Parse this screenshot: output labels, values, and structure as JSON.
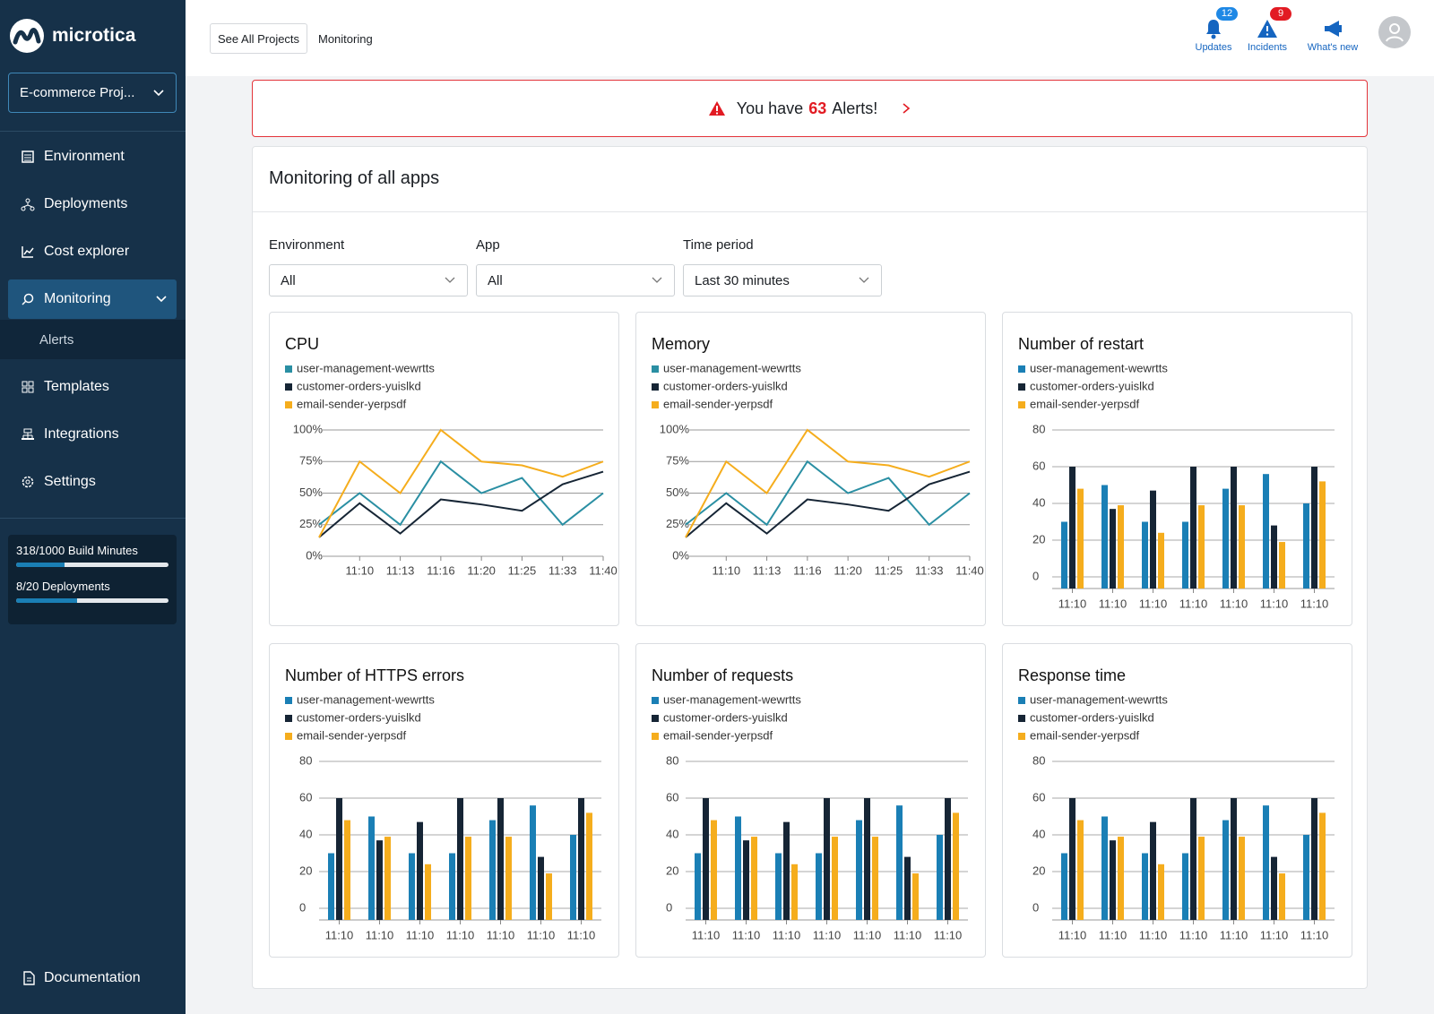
{
  "sidebar": {
    "brand": "microtica",
    "project": "E-commerce Proj...",
    "nav": [
      "Environment",
      "Deployments",
      "Cost explorer",
      "Monitoring",
      "Alerts",
      "Templates",
      "Integrations",
      "Settings"
    ],
    "usage": [
      {
        "label": "318/1000 Build Minutes",
        "used": 318,
        "limit": 1000
      },
      {
        "label": "8/20 Deployments",
        "used": 8,
        "limit": 20
      }
    ],
    "footer": "Documentation"
  },
  "header": {
    "breadcrumbs": [
      "See All Projects",
      "Monitoring"
    ],
    "actions": [
      {
        "label": "Updates",
        "badge": 12
      },
      {
        "label": "Incidents",
        "badge": 9
      },
      {
        "label": "What's new"
      }
    ]
  },
  "alert": {
    "before": "You have",
    "count": 63,
    "after": "Alerts!"
  },
  "panel": {
    "title": "Monitoring of all apps",
    "filters": [
      {
        "label": "Environment",
        "value": "All"
      },
      {
        "label": "App",
        "value": "All"
      },
      {
        "label": "Time period",
        "value": "Last 30 minutes"
      }
    ]
  },
  "chart_data": [
    {
      "type": "line",
      "title": "CPU",
      "categories": [
        null,
        "11:10",
        "11:13",
        "11:16",
        "11:20",
        "11:25",
        "11:33",
        "11:40"
      ],
      "series": [
        {
          "name": "user-management-wewrtts",
          "color": "#2a8fa3",
          "values": [
            25,
            50,
            25,
            75,
            50,
            62,
            25,
            50
          ]
        },
        {
          "name": "customer-orders-yuislkd",
          "color": "#162535",
          "values": [
            15,
            42,
            18,
            45,
            41,
            36,
            57,
            67
          ]
        },
        {
          "name": "email-sender-yerpsdf",
          "color": "#f5ad1d",
          "values": [
            15,
            75,
            50,
            100,
            75,
            72,
            63,
            75
          ]
        }
      ],
      "ylim": [
        0,
        100
      ],
      "yticks": [
        {
          "value": 0,
          "label": "0%"
        },
        {
          "value": 25,
          "label": "25%"
        },
        {
          "value": 50,
          "label": "50%"
        },
        {
          "value": 75,
          "label": "75%"
        },
        {
          "value": 100,
          "label": "100%"
        }
      ],
      "grid": true
    },
    {
      "type": "line",
      "title": "Memory",
      "categories": [
        null,
        "11:10",
        "11:13",
        "11:16",
        "11:20",
        "11:25",
        "11:33",
        "11:40"
      ],
      "series": [
        {
          "name": "user-management-wewrtts",
          "color": "#2a8fa3",
          "values": [
            25,
            50,
            25,
            75,
            50,
            62,
            25,
            50
          ]
        },
        {
          "name": "customer-orders-yuislkd",
          "color": "#162535",
          "values": [
            15,
            42,
            18,
            45,
            41,
            36,
            57,
            67
          ]
        },
        {
          "name": "email-sender-yerpsdf",
          "color": "#f5ad1d",
          "values": [
            15,
            75,
            50,
            100,
            75,
            72,
            63,
            75
          ]
        }
      ],
      "ylim": [
        0,
        100
      ],
      "yticks": [
        {
          "value": 0,
          "label": "0%"
        },
        {
          "value": 25,
          "label": "25%"
        },
        {
          "value": 50,
          "label": "50%"
        },
        {
          "value": 75,
          "label": "75%"
        },
        {
          "value": 100,
          "label": "100%"
        }
      ],
      "grid": true
    },
    {
      "type": "bar",
      "title": "Number of restart",
      "categories": [
        "11:10",
        "11:10",
        "11:10",
        "11:10",
        "11:10",
        "11:10",
        "11:10"
      ],
      "series": [
        {
          "name": "user-management-wewrtts",
          "color": "#1a7fb5",
          "values": [
            30,
            50,
            30,
            30,
            48,
            56,
            40
          ]
        },
        {
          "name": "customer-orders-yuislkd",
          "color": "#162535",
          "values": [
            60,
            37,
            47,
            60,
            60,
            28,
            60
          ]
        },
        {
          "name": "email-sender-yerpsdf",
          "color": "#f5ad1d",
          "values": [
            48,
            39,
            24,
            39,
            39,
            19,
            52
          ]
        }
      ],
      "ylim": [
        0,
        80
      ],
      "yticks": [
        0,
        20,
        40,
        60,
        80
      ],
      "grid": true
    },
    {
      "type": "bar",
      "title": "Number of HTTPS errors",
      "categories": [
        "11:10",
        "11:10",
        "11:10",
        "11:10",
        "11:10",
        "11:10",
        "11:10"
      ],
      "series": [
        {
          "name": "user-management-wewrtts",
          "color": "#1a7fb5",
          "values": [
            30,
            50,
            30,
            30,
            48,
            56,
            40
          ]
        },
        {
          "name": "customer-orders-yuislkd",
          "color": "#162535",
          "values": [
            60,
            37,
            47,
            60,
            60,
            28,
            60
          ]
        },
        {
          "name": "email-sender-yerpsdf",
          "color": "#f5ad1d",
          "values": [
            48,
            39,
            24,
            39,
            39,
            19,
            52
          ]
        }
      ],
      "ylim": [
        0,
        80
      ],
      "yticks": [
        0,
        20,
        40,
        60,
        80
      ],
      "grid": true
    },
    {
      "type": "bar",
      "title": "Number of requests",
      "categories": [
        "11:10",
        "11:10",
        "11:10",
        "11:10",
        "11:10",
        "11:10",
        "11:10"
      ],
      "series": [
        {
          "name": "user-management-wewrtts",
          "color": "#1a7fb5",
          "values": [
            30,
            50,
            30,
            30,
            48,
            56,
            40
          ]
        },
        {
          "name": "customer-orders-yuislkd",
          "color": "#162535",
          "values": [
            60,
            37,
            47,
            60,
            60,
            28,
            60
          ]
        },
        {
          "name": "email-sender-yerpsdf",
          "color": "#f5ad1d",
          "values": [
            48,
            39,
            24,
            39,
            39,
            19,
            52
          ]
        }
      ],
      "ylim": [
        0,
        80
      ],
      "yticks": [
        0,
        20,
        40,
        60,
        80
      ],
      "grid": true
    },
    {
      "type": "bar",
      "title": "Response time",
      "categories": [
        "11:10",
        "11:10",
        "11:10",
        "11:10",
        "11:10",
        "11:10",
        "11:10"
      ],
      "series": [
        {
          "name": "user-management-wewrtts",
          "color": "#1a7fb5",
          "values": [
            30,
            50,
            30,
            30,
            48,
            56,
            40
          ]
        },
        {
          "name": "customer-orders-yuislkd",
          "color": "#162535",
          "values": [
            60,
            37,
            47,
            60,
            60,
            28,
            60
          ]
        },
        {
          "name": "email-sender-yerpsdf",
          "color": "#f5ad1d",
          "values": [
            48,
            39,
            24,
            39,
            39,
            19,
            52
          ]
        }
      ],
      "ylim": [
        0,
        80
      ],
      "yticks": [
        0,
        20,
        40,
        60,
        80
      ],
      "grid": true
    }
  ]
}
